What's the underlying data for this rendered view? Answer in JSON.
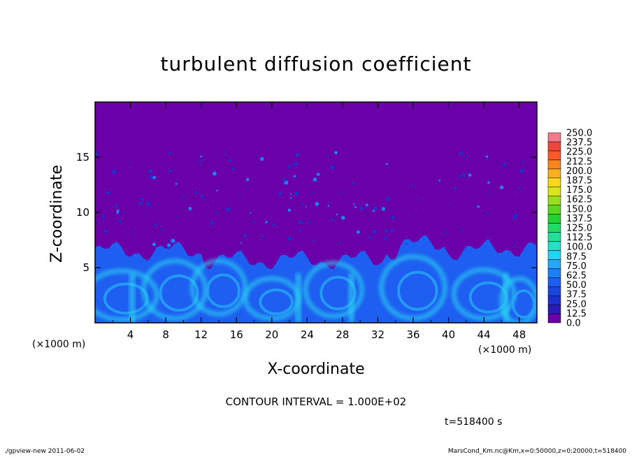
{
  "chart_data": {
    "type": "heatmap",
    "title": "turbulent diffusion coefficient",
    "xlabel": "X-coordinate",
    "ylabel": "Z-coordinate",
    "x_unit_label": "(×1000 m)",
    "xlim": [
      0,
      50
    ],
    "ylim": [
      0,
      20
    ],
    "x_ticks": [
      4,
      8,
      12,
      16,
      20,
      24,
      28,
      32,
      36,
      40,
      44,
      48
    ],
    "y_ticks": [
      5,
      10,
      15
    ],
    "colorbar": {
      "levels": [
        "0.0",
        "12.5",
        "25.0",
        "37.5",
        "50.0",
        "62.5",
        "75.0",
        "87.5",
        "100.0",
        "112.5",
        "125.0",
        "137.5",
        "150.0",
        "162.5",
        "175.0",
        "187.5",
        "200.0",
        "212.5",
        "225.0",
        "237.5",
        "250.0"
      ],
      "colors": [
        "#6a00a8",
        "#2a1ab8",
        "#1e30cc",
        "#1a46dc",
        "#1e5ef0",
        "#1e80f6",
        "#26a8f6",
        "#2ad2f2",
        "#24e0c8",
        "#22e09a",
        "#22da66",
        "#20d234",
        "#58d820",
        "#98de1e",
        "#d8e41e",
        "#f8d81e",
        "#f8b01e",
        "#f88420",
        "#f85a2a",
        "#f0443e",
        "#f27a8a"
      ],
      "position": "right"
    },
    "field_description_levels": {
      "background": "#6a00a8",
      "turbulent_layer_top_km": 6.5
    }
  },
  "annotations": {
    "contour_interval": "CONTOUR INTERVAL = 1.000E+02",
    "time": "t=518400  s"
  },
  "footer": {
    "left": "./gpview-new   2011-06-02",
    "right": "MarsCond_Km.nc@Km,x=0:50000,z=0:20000,t=518400"
  }
}
